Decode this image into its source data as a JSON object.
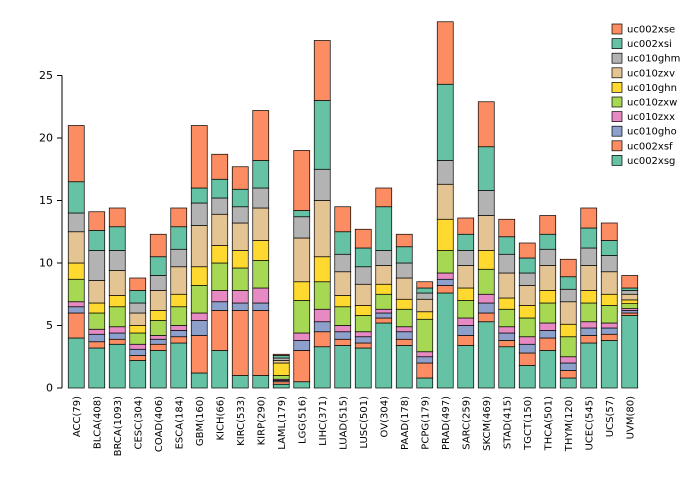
{
  "figure": {
    "background": "#ffffff"
  },
  "chart_data": {
    "type": "bar",
    "stacked": true,
    "title": "",
    "xlabel": "",
    "ylabel": "",
    "ylim": [
      0,
      30
    ],
    "yticks": [
      0,
      5,
      10,
      15,
      20,
      25
    ],
    "grid": false,
    "legend_position": "top-right",
    "legend_order": [
      "uc002xse",
      "uc002xsi",
      "uc010ghm",
      "uc010zxv",
      "uc010ghn",
      "uc010zxw",
      "uc010zxx",
      "uc010gho",
      "uc002xsf",
      "uc002xsg"
    ],
    "categories": [
      "ACC(79)",
      "BLCA(408)",
      "BRCA(1093)",
      "CESC(304)",
      "COAD(406)",
      "ESCA(184)",
      "GBM(160)",
      "KICH(66)",
      "KIRC(533)",
      "KIRP(290)",
      "LAML(179)",
      "LGG(516)",
      "LIHC(371)",
      "LUAD(515)",
      "LUSC(501)",
      "OV(304)",
      "PAAD(178)",
      "PCPG(179)",
      "PRAD(497)",
      "SARC(259)",
      "SKCM(469)",
      "STAD(415)",
      "TGCT(150)",
      "THCA(501)",
      "THYM(120)",
      "UCEC(545)",
      "UCS(57)",
      "UVM(80)"
    ],
    "series": [
      {
        "name": "uc002xsg",
        "color": "#66C2A5",
        "values": [
          4.0,
          3.2,
          3.5,
          2.2,
          3.0,
          3.6,
          1.2,
          3.0,
          1.0,
          1.0,
          0.3,
          0.5,
          3.3,
          3.4,
          3.2,
          5.2,
          3.4,
          0.8,
          7.6,
          3.4,
          5.3,
          3.3,
          1.8,
          3.0,
          0.8,
          3.6,
          3.8,
          5.8
        ]
      },
      {
        "name": "uc002xsf",
        "color": "#FC8D62",
        "values": [
          2.0,
          0.5,
          0.4,
          0.4,
          0.5,
          0.5,
          3.0,
          3.2,
          5.2,
          5.2,
          0.2,
          2.5,
          1.2,
          0.5,
          0.4,
          0.4,
          0.5,
          1.2,
          0.6,
          0.8,
          0.7,
          0.5,
          1.0,
          1.0,
          0.6,
          0.6,
          0.5,
          0.2
        ]
      },
      {
        "name": "uc010gho",
        "color": "#8DA0CB",
        "values": [
          0.5,
          0.6,
          0.5,
          0.5,
          0.4,
          0.5,
          1.2,
          0.7,
          0.6,
          0.6,
          0.1,
          0.8,
          0.8,
          0.6,
          0.5,
          0.4,
          0.6,
          0.5,
          0.5,
          0.8,
          0.8,
          0.6,
          0.7,
          0.6,
          0.6,
          0.6,
          0.5,
          0.2
        ]
      },
      {
        "name": "uc010zxx",
        "color": "#E78AC3",
        "values": [
          0.4,
          0.4,
          0.5,
          0.4,
          0.3,
          0.4,
          0.6,
          0.9,
          1.0,
          1.2,
          0.1,
          0.6,
          1.0,
          0.5,
          0.4,
          0.3,
          0.4,
          0.4,
          0.5,
          0.6,
          0.7,
          0.5,
          0.6,
          0.6,
          0.5,
          0.5,
          0.4,
          0.15
        ]
      },
      {
        "name": "uc010zxw",
        "color": "#A6D854",
        "values": [
          1.8,
          1.3,
          1.6,
          0.9,
          1.2,
          1.5,
          2.2,
          2.2,
          1.8,
          2.2,
          0.3,
          2.6,
          2.2,
          1.5,
          1.3,
          1.2,
          1.4,
          2.6,
          1.8,
          1.4,
          2.0,
          1.4,
          1.5,
          1.6,
          1.6,
          1.5,
          1.4,
          0.4
        ]
      },
      {
        "name": "uc010ghn",
        "color": "#FFD92F",
        "values": [
          1.3,
          0.8,
          0.9,
          0.6,
          0.8,
          1.0,
          1.5,
          1.4,
          1.4,
          1.6,
          1.0,
          1.5,
          2.0,
          0.9,
          0.8,
          0.8,
          0.8,
          0.6,
          2.5,
          1.0,
          1.5,
          0.9,
          1.0,
          1.0,
          1.0,
          1.0,
          0.9,
          0.3
        ]
      },
      {
        "name": "uc010zxv",
        "color": "#E5C494",
        "values": [
          2.5,
          1.8,
          2.0,
          1.0,
          1.6,
          2.2,
          3.3,
          2.5,
          2.2,
          2.6,
          0.2,
          3.5,
          4.5,
          1.9,
          1.7,
          1.5,
          1.7,
          1.0,
          2.8,
          1.8,
          2.8,
          2.0,
          1.6,
          2.0,
          1.8,
          2.0,
          1.8,
          0.45
        ]
      },
      {
        "name": "uc010ghm",
        "color": "#B3B3B3",
        "values": [
          1.5,
          2.4,
          1.6,
          0.8,
          1.2,
          1.4,
          1.8,
          1.3,
          1.3,
          1.6,
          0.2,
          1.7,
          2.5,
          1.4,
          1.4,
          1.2,
          1.2,
          0.5,
          1.9,
          1.2,
          2.0,
          1.5,
          1.0,
          1.3,
          1.0,
          1.4,
          1.3,
          0.3
        ]
      },
      {
        "name": "uc002xsi",
        "color": "#66C2A5",
        "values": [
          2.5,
          1.6,
          1.9,
          1.0,
          1.5,
          1.8,
          1.2,
          1.5,
          1.4,
          2.2,
          0.2,
          0.5,
          5.5,
          1.8,
          1.5,
          3.5,
          1.3,
          0.4,
          6.1,
          1.3,
          3.5,
          1.4,
          1.2,
          1.2,
          1.0,
          1.6,
          1.2,
          0.2
        ]
      },
      {
        "name": "uc002xse",
        "color": "#FC8D62",
        "values": [
          4.5,
          1.5,
          1.5,
          1.0,
          1.8,
          1.5,
          5.0,
          2.0,
          1.8,
          4.0,
          0.1,
          4.8,
          4.8,
          2.0,
          1.5,
          1.5,
          1.0,
          0.5,
          5.0,
          1.3,
          3.6,
          1.4,
          1.2,
          1.5,
          1.4,
          1.6,
          1.4,
          1.0
        ]
      }
    ]
  }
}
